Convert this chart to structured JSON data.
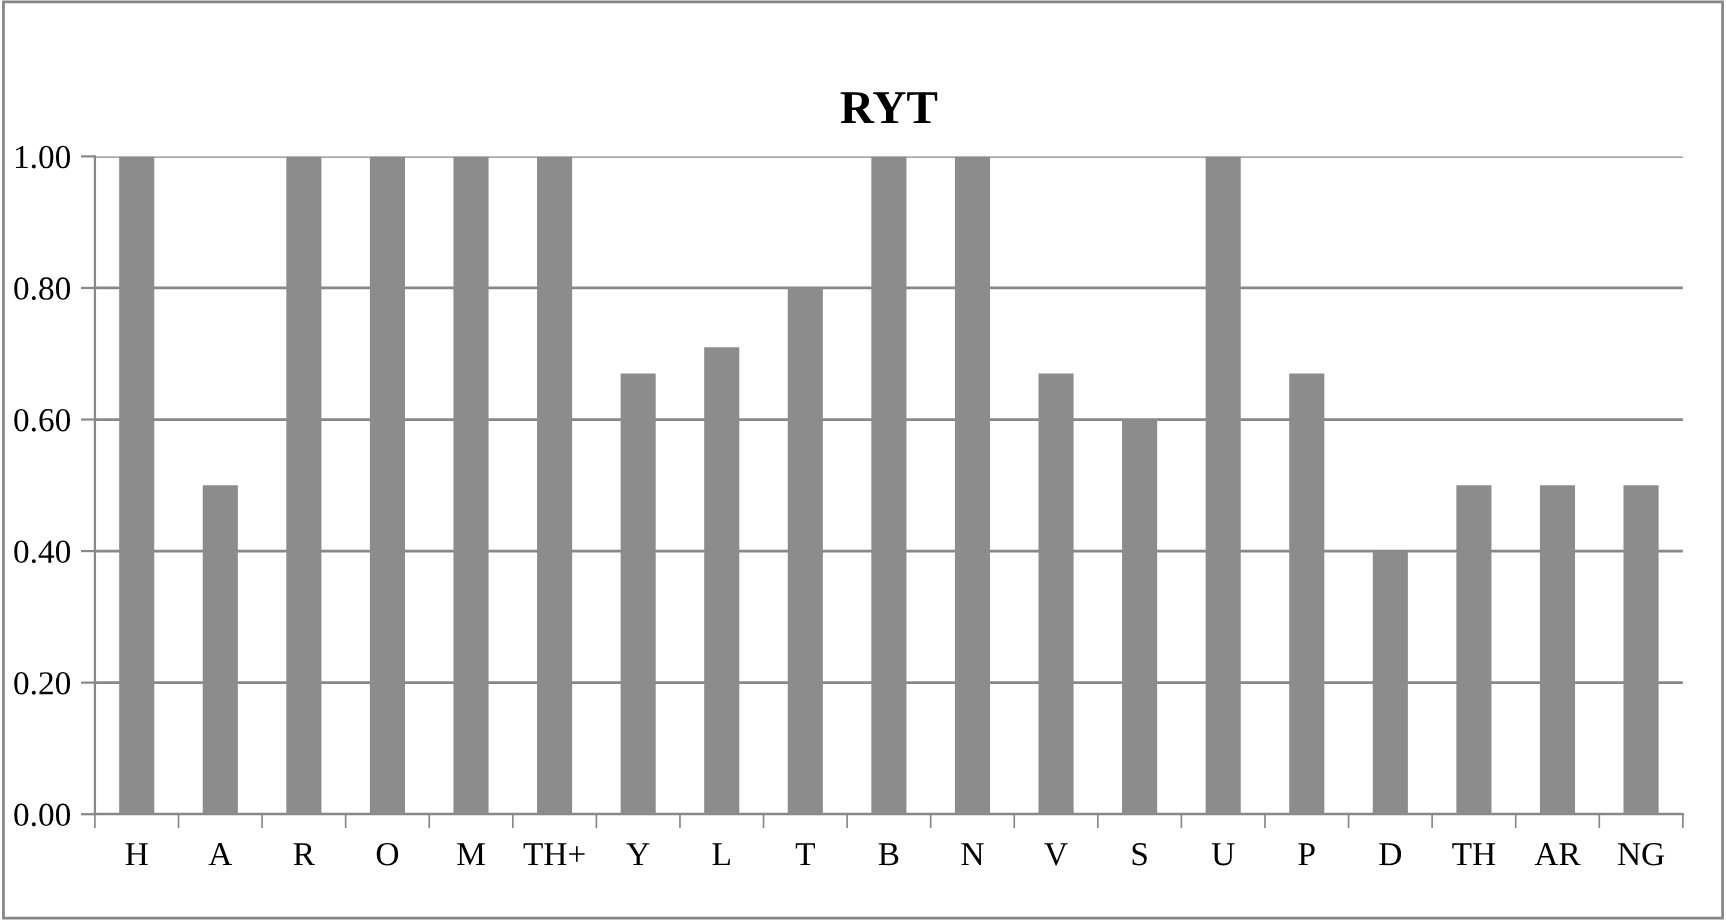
{
  "chart_data": {
    "type": "bar",
    "title": "RYT",
    "categories": [
      "H",
      "A",
      "R",
      "O",
      "M",
      "TH+",
      "Y",
      "L",
      "T",
      "B",
      "N",
      "V",
      "S",
      "U",
      "P",
      "D",
      "TH",
      "AR",
      "NG"
    ],
    "values": [
      1.0,
      0.5,
      1.0,
      1.0,
      1.0,
      1.0,
      0.67,
      0.71,
      0.8,
      1.0,
      1.0,
      0.67,
      0.6,
      1.0,
      0.67,
      0.4,
      0.5,
      0.5,
      0.5
    ],
    "color": "#8c8c8c",
    "ylim": [
      0,
      1
    ],
    "yticks": [
      {
        "value": 0,
        "label": "0.00"
      },
      {
        "value": 0.2,
        "label": "0.20"
      },
      {
        "value": 0.4,
        "label": "0.40"
      },
      {
        "value": 0.6,
        "label": "0.60"
      },
      {
        "value": 0.8,
        "label": "0.80"
      },
      {
        "value": 1.0,
        "label": "1.00"
      }
    ],
    "grid": "y",
    "legend": false
  }
}
